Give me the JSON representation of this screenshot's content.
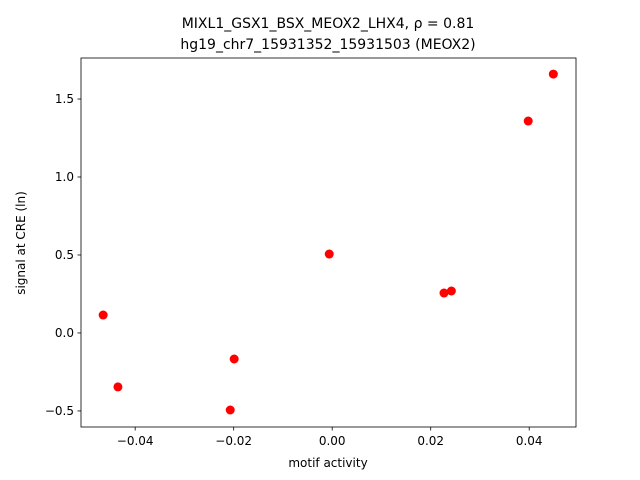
{
  "chart_data": {
    "type": "scatter",
    "title": "MIXL1_GSX1_BSX_MEOX2_LHX4, ρ = 0.81",
    "subtitle": "hg19_chr7_15931352_15931503 (MEOX2)",
    "x_label": "motif activity",
    "y_label": "signal at CRE (ln)",
    "color": "#ff0000",
    "grid": false,
    "x": [
      -0.0465,
      -0.0435,
      -0.0199,
      -0.0207,
      -0.0006,
      0.0227,
      0.0242,
      0.0398,
      0.0449
    ],
    "values": [
      0.115,
      -0.346,
      -0.167,
      -0.494,
      0.506,
      0.256,
      0.269,
      1.359,
      1.66
    ],
    "xlim": [
      -0.051,
      0.0495
    ],
    "ylim": [
      -0.603,
      1.763
    ],
    "xticks": [
      {
        "value": -0.04,
        "label": "−0.04"
      },
      {
        "value": -0.02,
        "label": "−0.02"
      },
      {
        "value": 0,
        "label": "0.00"
      },
      0.02,
      0.04
    ],
    "yticks": [
      {
        "value": -0.5,
        "label": "−0.5"
      },
      {
        "value": 0,
        "label": "0.0"
      },
      0.5,
      {
        "value": 1,
        "label": "1.0"
      },
      1.5
    ]
  }
}
